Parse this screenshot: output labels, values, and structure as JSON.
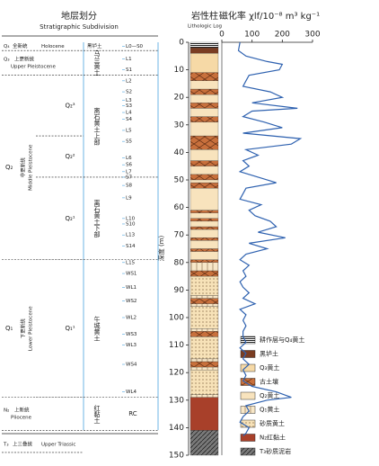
{
  "chart_data": {
    "type": "line",
    "title": "磁化率 χlf/10⁻⁸ m³ kg⁻¹",
    "ylabel": "深度 (m)",
    "xlim": [
      0,
      300
    ],
    "xticks": [
      0,
      100,
      200,
      300
    ],
    "ylim": [
      0,
      150
    ],
    "yticks": [
      0,
      10,
      20,
      30,
      40,
      50,
      60,
      70,
      80,
      90,
      100,
      110,
      120,
      130,
      140,
      150
    ],
    "series": [
      {
        "color": "#2f62b0",
        "depth": [
          0,
          3,
          5,
          7,
          8,
          10,
          12,
          14,
          16,
          18,
          20,
          22,
          24,
          25,
          27,
          29,
          31,
          33,
          35,
          37,
          39,
          41,
          43,
          45,
          47,
          49,
          51,
          53,
          55,
          57,
          59,
          61,
          63,
          65,
          67,
          69,
          71,
          73,
          75,
          77,
          79,
          81,
          83,
          85,
          87,
          89,
          91,
          93,
          95,
          97,
          99,
          101,
          103,
          105,
          107,
          109,
          111,
          113,
          115,
          117,
          119,
          121,
          123,
          125,
          127,
          129,
          130,
          132,
          134,
          136,
          138,
          140,
          142,
          143
        ],
        "values": [
          60,
          55,
          80,
          150,
          200,
          190,
          90,
          80,
          70,
          160,
          200,
          100,
          250,
          100,
          70,
          140,
          200,
          70,
          260,
          230,
          80,
          120,
          70,
          90,
          60,
          120,
          180,
          80,
          70,
          60,
          130,
          90,
          110,
          160,
          180,
          120,
          210,
          90,
          150,
          80,
          60,
          90,
          70,
          80,
          60,
          70,
          90,
          70,
          110,
          60,
          80,
          70,
          80,
          70,
          70,
          80,
          60,
          80,
          70,
          90,
          70,
          80,
          70,
          100,
          180,
          230,
          150,
          80,
          90,
          70,
          60,
          90,
          80,
          70
        ]
      }
    ]
  },
  "lithology": {
    "title": "岩性柱",
    "subtitle": "Lithologic Log",
    "legend": [
      {
        "label": "耕作层与Q₄黄土",
        "color": "#ffffff",
        "pattern": "stripes",
        "intervals": [
          [
            0,
            2
          ]
        ]
      },
      {
        "label": "黑垆土",
        "color": "#7a3d22",
        "pattern": null,
        "intervals": [
          [
            2,
            4
          ]
        ]
      },
      {
        "label": "Q₃黄土",
        "color": "#f6d9a6",
        "pattern": null,
        "intervals": [
          [
            4,
            11
          ]
        ]
      },
      {
        "label": "古土壤",
        "color": "#c8703c",
        "pattern": "cross",
        "intervals": [
          [
            11,
            14
          ],
          [
            17,
            19
          ],
          [
            22,
            24
          ],
          [
            27,
            29
          ],
          [
            34,
            39
          ],
          [
            43,
            45
          ],
          [
            48,
            50
          ],
          [
            51,
            53
          ],
          [
            61,
            62
          ],
          [
            64,
            65
          ],
          [
            67,
            68
          ],
          [
            71,
            72
          ],
          [
            75,
            76
          ],
          [
            79,
            80
          ],
          [
            83,
            85
          ],
          [
            93,
            95
          ],
          [
            105,
            107
          ],
          [
            116,
            118
          ]
        ]
      },
      {
        "label": "Q₂黄土",
        "color": "#f8e3bd",
        "pattern": null,
        "intervals": [
          [
            14,
            17
          ],
          [
            19,
            22
          ],
          [
            24,
            27
          ],
          [
            29,
            34
          ],
          [
            39,
            43
          ],
          [
            45,
            48
          ],
          [
            50,
            51
          ],
          [
            53,
            61
          ],
          [
            62,
            64
          ],
          [
            65,
            67
          ],
          [
            68,
            71
          ],
          [
            72,
            75
          ],
          [
            76,
            79
          ]
        ]
      },
      {
        "label": "Q₁黄土",
        "color": "#f8e7c8",
        "pattern": "vlines",
        "intervals": [
          [
            80,
            83
          ],
          [
            92,
            93
          ],
          [
            95,
            96
          ],
          [
            104,
            105
          ],
          [
            115,
            116
          ],
          [
            118,
            119
          ],
          [
            128,
            129
          ]
        ]
      },
      {
        "label": "砂质黄土",
        "color": "#f7e2b8",
        "pattern": "dots",
        "intervals": [
          [
            85,
            92
          ],
          [
            96,
            104
          ],
          [
            107,
            115
          ],
          [
            119,
            128
          ]
        ]
      },
      {
        "label": "N₂红黏土",
        "color": "#a8402a",
        "pattern": null,
        "intervals": [
          [
            129,
            141
          ]
        ]
      },
      {
        "label": "T₃砂质泥岩",
        "color": "#7a7a7a",
        "pattern": "hatch",
        "intervals": [
          [
            141,
            150
          ]
        ]
      }
    ]
  },
  "stratigraphy": {
    "title": "地层划分",
    "subtitle": "Stratigraphic Subdivision",
    "series": [
      {
        "code": "Q₄",
        "name": "全新统",
        "english": "Holocene",
        "top": 0,
        "bottom": 3
      },
      {
        "code": "Q₃",
        "name": "上更新统",
        "english": "Upper Pleistocene",
        "top": 3,
        "bottom": 12
      },
      {
        "code": "Q₂",
        "name": "中更新统",
        "english": "Middle Pleistocene",
        "top": 12,
        "bottom": 79
      },
      {
        "code": "Q₁",
        "name": "下更新统",
        "english": "Lower Pleistocene",
        "top": 79,
        "bottom": 129
      },
      {
        "code": "N₂",
        "name": "上新统",
        "english": "Pliocene",
        "top": 129,
        "bottom": 141
      },
      {
        "code": "T₃",
        "name": "上三叠统",
        "english": "Upper Triassic",
        "top": 143,
        "bottom": 149
      }
    ],
    "subseries": [
      {
        "label": "Q₂³",
        "top": 12,
        "bottom": 34
      },
      {
        "label": "Q₂²",
        "top": 34,
        "bottom": 49
      },
      {
        "label": "Q₂¹",
        "top": 49,
        "bottom": 79
      },
      {
        "label": "Q₁¹",
        "top": 79,
        "bottom": 129
      }
    ],
    "formations": [
      {
        "label": "黑垆土",
        "top": 0,
        "bottom": 3
      },
      {
        "label": "马兰黄土",
        "top": 3,
        "bottom": 12
      },
      {
        "label": "离石黄土上部",
        "top": 12,
        "bottom": 49
      },
      {
        "label": "离石黄土下部",
        "top": 49,
        "bottom": 79
      },
      {
        "label": "午城黄土",
        "top": 79,
        "bottom": 129
      },
      {
        "label": "红黏土",
        "code": "RC",
        "top": 129,
        "bottom": 141
      }
    ],
    "units": [
      {
        "label": "L0—S0",
        "depth": 1.5
      },
      {
        "label": "L1",
        "depth": 6
      },
      {
        "label": "S1",
        "depth": 10
      },
      {
        "label": "L2",
        "depth": 14
      },
      {
        "label": "S2",
        "depth": 18
      },
      {
        "label": "L3",
        "depth": 21
      },
      {
        "label": "S3",
        "depth": 23
      },
      {
        "label": "L4",
        "depth": 25.5
      },
      {
        "label": "S4",
        "depth": 28
      },
      {
        "label": "L5",
        "depth": 32
      },
      {
        "label": "S5",
        "depth": 36
      },
      {
        "label": "L6",
        "depth": 42
      },
      {
        "label": "S6",
        "depth": 44.5
      },
      {
        "label": "L7",
        "depth": 47
      },
      {
        "label": "S7",
        "depth": 49
      },
      {
        "label": "S8",
        "depth": 52
      },
      {
        "label": "L9",
        "depth": 56.5
      },
      {
        "label": "L10",
        "depth": 64
      },
      {
        "label": "S10",
        "depth": 66
      },
      {
        "label": "L13",
        "depth": 70
      },
      {
        "label": "S14",
        "depth": 74
      },
      {
        "label": "L15",
        "depth": 80
      },
      {
        "label": "WS1",
        "depth": 84
      },
      {
        "label": "WL1",
        "depth": 89
      },
      {
        "label": "WS2",
        "depth": 94
      },
      {
        "label": "WL2",
        "depth": 100
      },
      {
        "label": "WS3",
        "depth": 106
      },
      {
        "label": "WL3",
        "depth": 110
      },
      {
        "label": "WS4",
        "depth": 117
      },
      {
        "label": "WL4",
        "depth": 127
      }
    ]
  }
}
